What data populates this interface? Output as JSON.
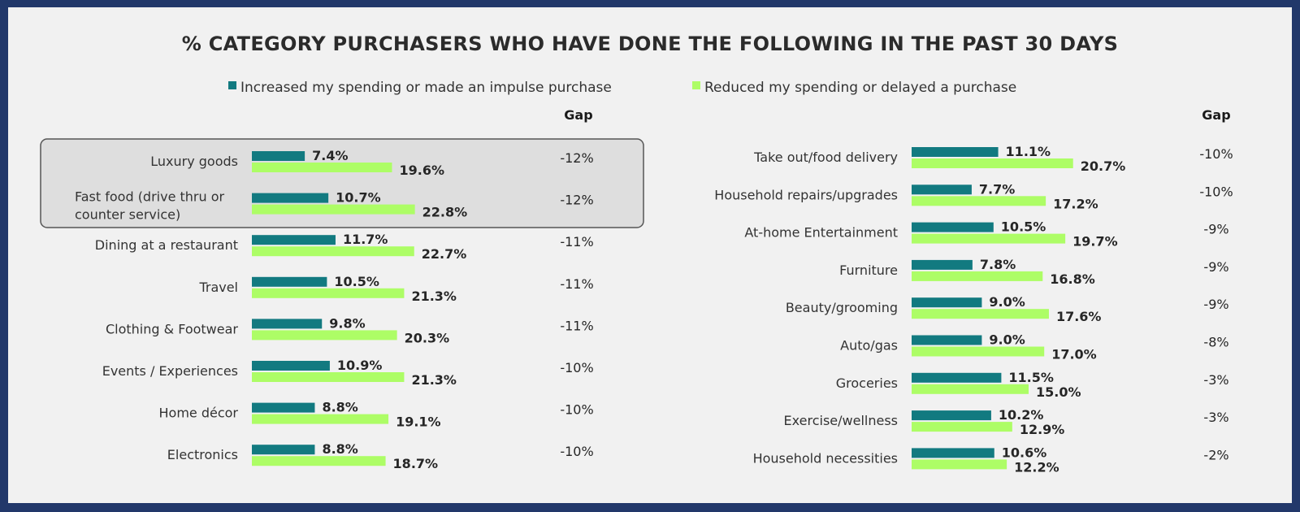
{
  "colors": {
    "increased": "#127a80",
    "reduced": "#adfd66",
    "highlight_fill": "#dedede",
    "highlight_stroke": "#555555",
    "frame": "#22386a",
    "background": "#f1f1f1"
  },
  "chart_data": {
    "type": "bar",
    "title": "% CATEGORY PURCHASERS WHO HAVE DONE THE FOLLOWING IN THE PAST 30 DAYS",
    "legend": {
      "placement": "top",
      "entries": [
        "Increased my spending or made an impulse purchase",
        "Reduced my spending or delayed a purchase"
      ]
    },
    "gap_label": "Gap",
    "panels": [
      {
        "highlighted_rows": [
          0,
          1
        ],
        "rows": [
          {
            "category": [
              "Luxury goods"
            ],
            "increased": 7.4,
            "reduced": 19.6,
            "increased_label": "7.4%",
            "reduced_label": "19.6%",
            "gap": "-12%"
          },
          {
            "category": [
              "Fast food (drive thru or",
              "counter service)"
            ],
            "increased": 10.7,
            "reduced": 22.8,
            "increased_label": "10.7%",
            "reduced_label": "22.8%",
            "gap": "-12%"
          },
          {
            "category": [
              "Dining at a restaurant"
            ],
            "increased": 11.7,
            "reduced": 22.7,
            "increased_label": "11.7%",
            "reduced_label": "22.7%",
            "gap": "-11%"
          },
          {
            "category": [
              "Travel"
            ],
            "increased": 10.5,
            "reduced": 21.3,
            "increased_label": "10.5%",
            "reduced_label": "21.3%",
            "gap": "-11%"
          },
          {
            "category": [
              "Clothing & Footwear"
            ],
            "increased": 9.8,
            "reduced": 20.3,
            "increased_label": "9.8%",
            "reduced_label": "20.3%",
            "gap": "-11%"
          },
          {
            "category": [
              "Events / Experiences"
            ],
            "increased": 10.9,
            "reduced": 21.3,
            "increased_label": "10.9%",
            "reduced_label": "21.3%",
            "gap": "-10%"
          },
          {
            "category": [
              "Home décor"
            ],
            "increased": 8.8,
            "reduced": 19.1,
            "increased_label": "8.8%",
            "reduced_label": "19.1%",
            "gap": "-10%"
          },
          {
            "category": [
              "Electronics"
            ],
            "increased": 8.8,
            "reduced": 18.7,
            "increased_label": "8.8%",
            "reduced_label": "18.7%",
            "gap": "-10%"
          }
        ]
      },
      {
        "highlighted_rows": [],
        "rows": [
          {
            "category": [
              "Take out/food delivery"
            ],
            "increased": 11.1,
            "reduced": 20.7,
            "increased_label": "11.1%",
            "reduced_label": "20.7%",
            "gap": "-10%"
          },
          {
            "category": [
              "Household repairs/upgrades"
            ],
            "increased": 7.7,
            "reduced": 17.2,
            "increased_label": "7.7%",
            "reduced_label": "17.2%",
            "gap": "-10%"
          },
          {
            "category": [
              "At-home Entertainment"
            ],
            "increased": 10.5,
            "reduced": 19.7,
            "increased_label": "10.5%",
            "reduced_label": "19.7%",
            "gap": "-9%"
          },
          {
            "category": [
              "Furniture"
            ],
            "increased": 7.8,
            "reduced": 16.8,
            "increased_label": "7.8%",
            "reduced_label": "16.8%",
            "gap": "-9%"
          },
          {
            "category": [
              "Beauty/grooming"
            ],
            "increased": 9.0,
            "reduced": 17.6,
            "increased_label": "9.0%",
            "reduced_label": "17.6%",
            "gap": "-9%"
          },
          {
            "category": [
              "Auto/gas"
            ],
            "increased": 9.0,
            "reduced": 17.0,
            "increased_label": "9.0%",
            "reduced_label": "17.0%",
            "gap": "-8%"
          },
          {
            "category": [
              "Groceries"
            ],
            "increased": 11.5,
            "reduced": 15.0,
            "increased_label": "11.5%",
            "reduced_label": "15.0%",
            "gap": "-3%"
          },
          {
            "category": [
              "Exercise/wellness"
            ],
            "increased": 10.2,
            "reduced": 12.9,
            "increased_label": "10.2%",
            "reduced_label": "12.9%",
            "gap": "-3%"
          },
          {
            "category": [
              "Household necessities"
            ],
            "increased": 10.6,
            "reduced": 12.2,
            "increased_label": "10.6%",
            "reduced_label": "12.2%",
            "gap": "-2%"
          }
        ]
      }
    ]
  }
}
